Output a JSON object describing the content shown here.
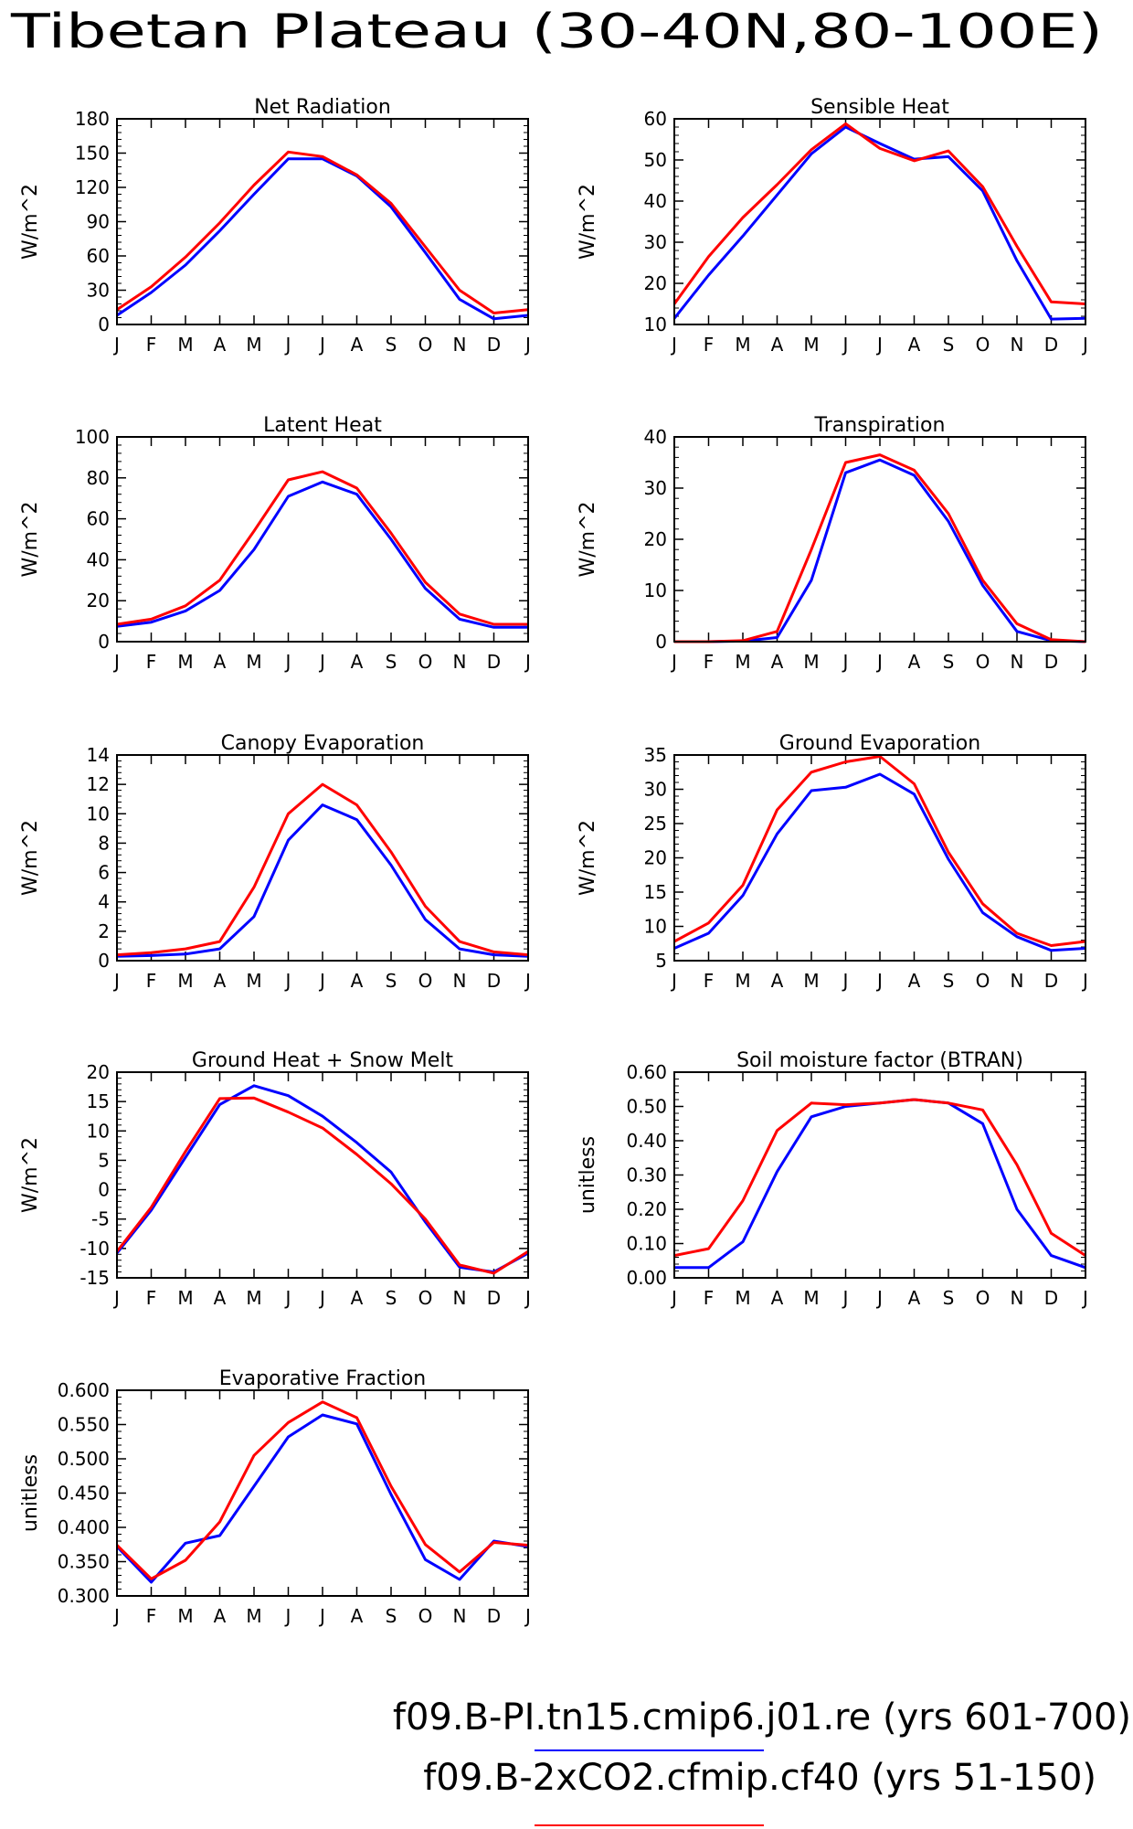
{
  "figure": {
    "title": "Tibetan Plateau (30-40N,80-100E)",
    "legend": [
      {
        "label": "f09.B-PI.tn15.cmip6.j01.re (yrs 601-700)",
        "color": "#0000ff"
      },
      {
        "label": "f09.B-2xCO2.cfmip.cf40 (yrs 51-150)",
        "color": "#ff0000"
      }
    ]
  },
  "chart_data": [
    {
      "type": "line",
      "title": "Net Radiation",
      "ylabel": "W/m^2",
      "categories": [
        "J",
        "F",
        "M",
        "A",
        "M",
        "J",
        "J",
        "A",
        "S",
        "O",
        "N",
        "D",
        "J"
      ],
      "ylim": [
        0,
        180
      ],
      "yticks": [
        "0",
        "30",
        "60",
        "90",
        "120",
        "150",
        "180"
      ],
      "ytick_values": [
        0,
        30,
        60,
        90,
        120,
        150,
        180
      ],
      "series": [
        {
          "color": "#0000ff",
          "values": [
            8,
            28,
            52,
            82,
            114,
            145,
            145,
            130,
            103,
            63,
            22,
            5,
            8
          ]
        },
        {
          "color": "#ff0000",
          "values": [
            13,
            33,
            59,
            89,
            122,
            151,
            147,
            131,
            106,
            68,
            30,
            10,
            13
          ]
        }
      ]
    },
    {
      "type": "line",
      "title": "Sensible Heat",
      "ylabel": "W/m^2",
      "categories": [
        "J",
        "F",
        "M",
        "A",
        "M",
        "J",
        "J",
        "A",
        "S",
        "O",
        "N",
        "D",
        "J"
      ],
      "ylim": [
        10,
        60
      ],
      "yticks": [
        "10",
        "20",
        "30",
        "40",
        "50",
        "60"
      ],
      "ytick_values": [
        10,
        20,
        30,
        40,
        50,
        60
      ],
      "series": [
        {
          "color": "#0000ff",
          "values": [
            11.5,
            22,
            31.5,
            41.5,
            51.5,
            58,
            54,
            50.2,
            50.8,
            42.5,
            25.5,
            11.3,
            11.5
          ]
        },
        {
          "color": "#ff0000",
          "values": [
            15,
            26.5,
            36,
            44,
            52.5,
            58.8,
            52.8,
            49.8,
            52.2,
            43.5,
            29,
            15.5,
            15
          ]
        }
      ]
    },
    {
      "type": "line",
      "title": "Latent Heat",
      "ylabel": "W/m^2",
      "categories": [
        "J",
        "F",
        "M",
        "A",
        "M",
        "J",
        "J",
        "A",
        "S",
        "O",
        "N",
        "D",
        "J"
      ],
      "ylim": [
        0,
        100
      ],
      "yticks": [
        "0",
        "20",
        "40",
        "60",
        "80",
        "100"
      ],
      "ytick_values": [
        0,
        20,
        40,
        60,
        80,
        100
      ],
      "series": [
        {
          "color": "#0000ff",
          "values": [
            7.5,
            9.5,
            15,
            25,
            45,
            71,
            78,
            72,
            50,
            26,
            11,
            7,
            7
          ]
        },
        {
          "color": "#ff0000",
          "values": [
            8.5,
            11,
            17.5,
            30,
            54,
            79,
            83,
            75,
            53,
            29,
            13.5,
            8.5,
            8.5
          ]
        }
      ]
    },
    {
      "type": "line",
      "title": "Transpiration",
      "ylabel": "W/m^2",
      "categories": [
        "J",
        "F",
        "M",
        "A",
        "M",
        "J",
        "J",
        "A",
        "S",
        "O",
        "N",
        "D",
        "J"
      ],
      "ylim": [
        0,
        40
      ],
      "yticks": [
        "0",
        "10",
        "20",
        "30",
        "40"
      ],
      "ytick_values": [
        0,
        10,
        20,
        30,
        40
      ],
      "series": [
        {
          "color": "#0000ff",
          "values": [
            0,
            0,
            0.1,
            0.8,
            12,
            33,
            35.5,
            32.5,
            23.5,
            11,
            2,
            0.2,
            0
          ]
        },
        {
          "color": "#ff0000",
          "values": [
            0,
            0,
            0.2,
            2,
            18,
            35,
            36.5,
            33.5,
            25,
            12,
            3.5,
            0.4,
            0
          ]
        }
      ]
    },
    {
      "type": "line",
      "title": "Canopy Evaporation",
      "ylabel": "W/m^2",
      "categories": [
        "J",
        "F",
        "M",
        "A",
        "M",
        "J",
        "J",
        "A",
        "S",
        "O",
        "N",
        "D",
        "J"
      ],
      "ylim": [
        0,
        14
      ],
      "yticks": [
        "0",
        "2",
        "4",
        "6",
        "8",
        "10",
        "12",
        "14"
      ],
      "ytick_values": [
        0,
        2,
        4,
        6,
        8,
        10,
        12,
        14
      ],
      "series": [
        {
          "color": "#0000ff",
          "values": [
            0.3,
            0.35,
            0.45,
            0.8,
            3,
            8.2,
            10.6,
            9.6,
            6.5,
            2.8,
            0.8,
            0.4,
            0.3
          ]
        },
        {
          "color": "#ff0000",
          "values": [
            0.4,
            0.55,
            0.8,
            1.3,
            5,
            10,
            12,
            10.6,
            7.4,
            3.7,
            1.3,
            0.6,
            0.4
          ]
        }
      ]
    },
    {
      "type": "line",
      "title": "Ground Evaporation",
      "ylabel": "W/m^2",
      "categories": [
        "J",
        "F",
        "M",
        "A",
        "M",
        "J",
        "J",
        "A",
        "S",
        "O",
        "N",
        "D",
        "J"
      ],
      "ylim": [
        5,
        35
      ],
      "yticks": [
        "5",
        "10",
        "15",
        "20",
        "25",
        "30",
        "35"
      ],
      "ytick_values": [
        5,
        10,
        15,
        20,
        25,
        30,
        35
      ],
      "series": [
        {
          "color": "#0000ff",
          "values": [
            6.8,
            9,
            14.5,
            23.5,
            29.8,
            30.3,
            32.2,
            29.3,
            19.8,
            12,
            8.5,
            6.5,
            6.8
          ]
        },
        {
          "color": "#ff0000",
          "values": [
            7.8,
            10.5,
            16,
            27,
            32.5,
            34,
            34.8,
            30.8,
            20.8,
            13.3,
            9,
            7.2,
            7.8
          ]
        }
      ]
    },
    {
      "type": "line",
      "title": "Ground Heat + Snow Melt",
      "ylabel": "W/m^2",
      "categories": [
        "J",
        "F",
        "M",
        "A",
        "M",
        "J",
        "J",
        "A",
        "S",
        "O",
        "N",
        "D",
        "J"
      ],
      "ylim": [
        -15,
        20
      ],
      "yticks": [
        "-15",
        "-10",
        "-5",
        "0",
        "5",
        "10",
        "15",
        "20"
      ],
      "ytick_values": [
        -15,
        -10,
        -5,
        0,
        5,
        10,
        15,
        20
      ],
      "series": [
        {
          "color": "#0000ff",
          "values": [
            -10.8,
            -3.5,
            5.5,
            14.5,
            17.7,
            16,
            12.5,
            8,
            3,
            -5.5,
            -13.2,
            -14,
            -10.8
          ]
        },
        {
          "color": "#ff0000",
          "values": [
            -10.5,
            -3,
            6.5,
            15.5,
            15.6,
            13.2,
            10.5,
            6,
            1,
            -5,
            -12.8,
            -14.2,
            -10.5
          ]
        }
      ]
    },
    {
      "type": "line",
      "title": "Soil moisture factor (BTRAN)",
      "ylabel": "unitless",
      "categories": [
        "J",
        "F",
        "M",
        "A",
        "M",
        "J",
        "J",
        "A",
        "S",
        "O",
        "N",
        "D",
        "J"
      ],
      "ylim": [
        0,
        0.6
      ],
      "yticks": [
        "0.00",
        "0.10",
        "0.20",
        "0.30",
        "0.40",
        "0.50",
        "0.60"
      ],
      "ytick_values": [
        0,
        0.1,
        0.2,
        0.3,
        0.4,
        0.5,
        0.6
      ],
      "series": [
        {
          "color": "#0000ff",
          "values": [
            0.03,
            0.03,
            0.105,
            0.31,
            0.47,
            0.5,
            0.51,
            0.52,
            0.51,
            0.45,
            0.2,
            0.065,
            0.03
          ]
        },
        {
          "color": "#ff0000",
          "values": [
            0.065,
            0.085,
            0.225,
            0.43,
            0.51,
            0.505,
            0.51,
            0.52,
            0.51,
            0.49,
            0.33,
            0.13,
            0.065
          ]
        }
      ]
    },
    {
      "type": "line",
      "title": "Evaporative Fraction",
      "ylabel": "unitless",
      "categories": [
        "J",
        "F",
        "M",
        "A",
        "M",
        "J",
        "J",
        "A",
        "S",
        "O",
        "N",
        "D",
        "J"
      ],
      "ylim": [
        0.3,
        0.6
      ],
      "yticks": [
        "0.300",
        "0.350",
        "0.400",
        "0.450",
        "0.500",
        "0.550",
        "0.600"
      ],
      "ytick_values": [
        0.3,
        0.35,
        0.4,
        0.45,
        0.5,
        0.55,
        0.6
      ],
      "series": [
        {
          "color": "#0000ff",
          "values": [
            0.372,
            0.32,
            0.377,
            0.388,
            0.46,
            0.532,
            0.564,
            0.551,
            0.448,
            0.353,
            0.324,
            0.38,
            0.372
          ]
        },
        {
          "color": "#ff0000",
          "values": [
            0.374,
            0.325,
            0.352,
            0.408,
            0.505,
            0.553,
            0.583,
            0.56,
            0.46,
            0.375,
            0.335,
            0.378,
            0.374
          ]
        }
      ]
    }
  ]
}
